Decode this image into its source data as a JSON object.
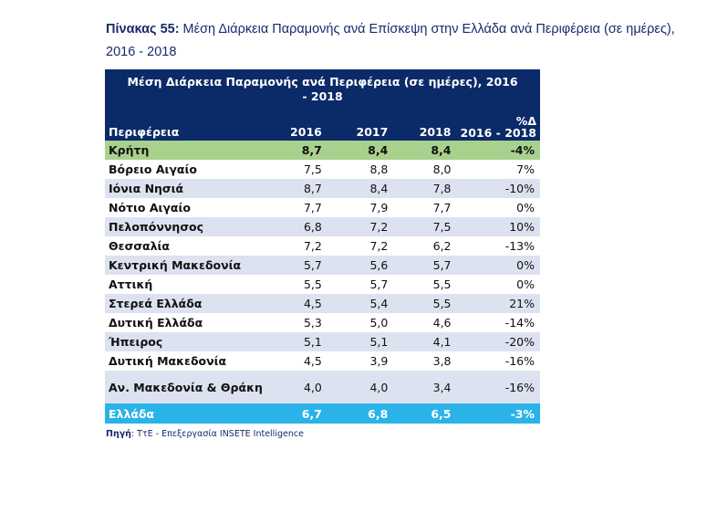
{
  "caption": {
    "label": "Πίνακας 55:",
    "text": " Μέση Διάρκεια Παραμονής ανά Επίσκεψη στην Ελλάδα ανά Περιφέρεια (σε ημέρες), 2016 - 2018"
  },
  "table": {
    "title": "Μέση Διάρκεια Παραμονής ανά Περιφέρεια (σε ημέρες), 2016 - 2018",
    "headers": {
      "region": "Περιφέρεια",
      "y2016": "2016",
      "y2017": "2017",
      "y2018": "2018",
      "pct_line1": "%Δ",
      "pct_line2": "2016 - 2018"
    },
    "rows": [
      {
        "region": "Κρήτη",
        "v2016": "8,7",
        "v2017": "8,4",
        "v2018": "8,4",
        "pct": "-4%"
      },
      {
        "region": "Βόρειο Αιγαίο",
        "v2016": "7,5",
        "v2017": "8,8",
        "v2018": "8,0",
        "pct": "7%"
      },
      {
        "region": "Ιόνια Νησιά",
        "v2016": "8,7",
        "v2017": "8,4",
        "v2018": "7,8",
        "pct": "-10%"
      },
      {
        "region": "Νότιο Αιγαίο",
        "v2016": "7,7",
        "v2017": "7,9",
        "v2018": "7,7",
        "pct": "0%"
      },
      {
        "region": "Πελοπόννησος",
        "v2016": "6,8",
        "v2017": "7,2",
        "v2018": "7,5",
        "pct": "10%"
      },
      {
        "region": "Θεσσαλία",
        "v2016": "7,2",
        "v2017": "7,2",
        "v2018": "6,2",
        "pct": "-13%"
      },
      {
        "region": "Κεντρική Μακεδονία",
        "v2016": "5,7",
        "v2017": "5,6",
        "v2018": "5,7",
        "pct": "0%"
      },
      {
        "region": "Αττική",
        "v2016": "5,5",
        "v2017": "5,7",
        "v2018": "5,5",
        "pct": "0%"
      },
      {
        "region": "Στερεά Ελλάδα",
        "v2016": "4,5",
        "v2017": "5,4",
        "v2018": "5,5",
        "pct": "21%"
      },
      {
        "region": "Δυτική Ελλάδα",
        "v2016": "5,3",
        "v2017": "5,0",
        "v2018": "4,6",
        "pct": "-14%"
      },
      {
        "region": "Ήπειρος",
        "v2016": "5,1",
        "v2017": "5,1",
        "v2018": "4,1",
        "pct": "-20%"
      },
      {
        "region": "Δυτική Μακεδονία",
        "v2016": "4,5",
        "v2017": "3,9",
        "v2018": "3,8",
        "pct": "-16%"
      },
      {
        "region": "Αν. Μακεδονία & Θράκη",
        "v2016": "4,0",
        "v2017": "4,0",
        "v2018": "3,4",
        "pct": "-16%"
      }
    ],
    "total": {
      "region": "Ελλάδα",
      "v2016": "6,7",
      "v2017": "6,8",
      "v2018": "6,5",
      "pct": "-3%"
    }
  },
  "source": {
    "label": "Πηγή",
    "text": ": ΤτΕ - Επεξεργασία INSETE Intelligence"
  },
  "colors": {
    "header_bg": "#0b2a68",
    "highlight_row": "#a9d18e",
    "stripe_row": "#dde2f1",
    "total_row": "#2ab3e8",
    "caption_text": "#1a2a6b"
  }
}
